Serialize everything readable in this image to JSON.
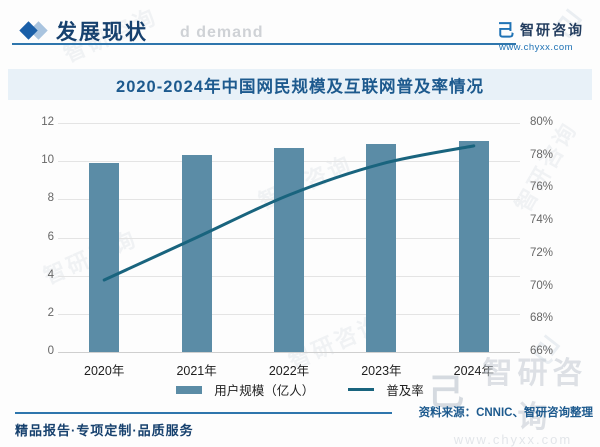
{
  "header": {
    "section_title": "发展现状",
    "watermark_fragment": "d demand",
    "brand": {
      "name": "智研咨询",
      "website": "www.chyxx.com",
      "logo_glyph": "己"
    }
  },
  "chart": {
    "title": "2020-2024年中国网民规模及互联网普及率情况"
  },
  "chart_data": {
    "type": "bar",
    "combo": "bar + line, dual y-axis",
    "title": "2020-2024年中国网民规模及互联网普及率情况",
    "categories": [
      "2020年",
      "2021年",
      "2022年",
      "2023年",
      "2024年"
    ],
    "series": [
      {
        "name": "用户规模（亿人）",
        "type": "bar",
        "axis": "left",
        "color": "#5b8ca6",
        "values": [
          9.89,
          10.32,
          10.67,
          10.92,
          11.08
        ]
      },
      {
        "name": "普及率",
        "type": "line",
        "axis": "right",
        "color": "#19647e",
        "values": [
          70.4,
          73.0,
          75.6,
          77.5,
          78.6
        ]
      }
    ],
    "left_axis": {
      "min": 0,
      "max": 12,
      "step": 2,
      "tick_labels": [
        "0",
        "2",
        "4",
        "6",
        "8",
        "10",
        "12"
      ]
    },
    "right_axis": {
      "min": 66,
      "max": 80,
      "step": 2,
      "unit": "%",
      "tick_labels": [
        "66%",
        "68%",
        "70%",
        "72%",
        "74%",
        "76%",
        "78%",
        "80%"
      ]
    },
    "grid": true,
    "legend_position": "bottom"
  },
  "footer": {
    "source": "资料来源：CNNIC、智研咨询整理",
    "tagline": "精品报告·专项定制·品质服务"
  },
  "colors": {
    "bar": "#5b8ca6",
    "line": "#19647e",
    "title_band_bg": "#e8f1f8",
    "title_text": "#1d5a8e",
    "accent_rule": "#2e76ad",
    "header_text": "#17416e",
    "axis_text": "#666666"
  }
}
